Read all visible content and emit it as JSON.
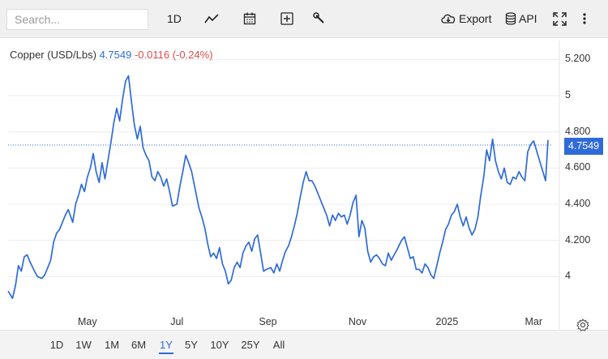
{
  "toolbar": {
    "search_placeholder": "Search...",
    "interval_label": "1D",
    "export_label": "Export",
    "api_label": "API",
    "icons": [
      "line-chart-icon",
      "calendar-icon",
      "plus-box-icon",
      "wrench-icon",
      "cloud-download-icon",
      "database-icon",
      "fullscreen-icon",
      "more-vertical-icon"
    ]
  },
  "quote": {
    "name": "Copper (USD/Lbs)",
    "price": "4.7549",
    "change": "-0.0116 (-0.24%)",
    "last_label": "4.7549"
  },
  "ranges": [
    "1D",
    "1W",
    "1M",
    "6M",
    "1Y",
    "5Y",
    "10Y",
    "25Y",
    "All"
  ],
  "active_range": "1Y",
  "colors": {
    "line": "#2f6bd8",
    "change_negative": "#e04b4b",
    "price": "#2e6fd6"
  },
  "chart_data": {
    "type": "line",
    "title": "Copper (USD/Lbs)",
    "xlabel": "",
    "ylabel": "",
    "y_ticks": [
      {
        "value": 5.2,
        "label": "5.200"
      },
      {
        "value": 5.0,
        "label": "5"
      },
      {
        "value": 4.8,
        "label": "4.800"
      },
      {
        "value": 4.6,
        "label": "4.600"
      },
      {
        "value": 4.4,
        "label": "4.400"
      },
      {
        "value": 4.2,
        "label": "4.200"
      },
      {
        "value": 4.0,
        "label": "4"
      }
    ],
    "x_ticks": [
      {
        "value": "2024-05-01",
        "label": "May"
      },
      {
        "value": "2024-07-01",
        "label": "Jul"
      },
      {
        "value": "2024-09-01",
        "label": "Sep"
      },
      {
        "value": "2024-11-01",
        "label": "Nov"
      },
      {
        "value": "2025-01-01",
        "label": "2025"
      },
      {
        "value": "2025-03-01",
        "label": "Mar"
      }
    ],
    "xlim": [
      "2024-03-08",
      "2025-03-13"
    ],
    "ylim": [
      3.8,
      5.26
    ],
    "last_value": 4.7549,
    "series": [
      {
        "values": [
          [
            "2024-03-08",
            3.92
          ],
          [
            "2024-03-11",
            3.88
          ],
          [
            "2024-03-13",
            3.95
          ],
          [
            "2024-03-15",
            4.06
          ],
          [
            "2024-03-17",
            4.03
          ],
          [
            "2024-03-19",
            4.11
          ],
          [
            "2024-03-21",
            4.12
          ],
          [
            "2024-03-23",
            4.08
          ],
          [
            "2024-03-26",
            4.03
          ],
          [
            "2024-03-28",
            4.0
          ],
          [
            "2024-03-31",
            3.99
          ],
          [
            "2024-04-02",
            4.01
          ],
          [
            "2024-04-04",
            4.05
          ],
          [
            "2024-04-06",
            4.09
          ],
          [
            "2024-04-08",
            4.19
          ],
          [
            "2024-04-10",
            4.24
          ],
          [
            "2024-04-12",
            4.26
          ],
          [
            "2024-04-14",
            4.3
          ],
          [
            "2024-04-16",
            4.34
          ],
          [
            "2024-04-18",
            4.37
          ],
          [
            "2024-04-21",
            4.3
          ],
          [
            "2024-04-23",
            4.4
          ],
          [
            "2024-04-25",
            4.45
          ],
          [
            "2024-04-27",
            4.51
          ],
          [
            "2024-04-29",
            4.47
          ],
          [
            "2024-05-01",
            4.55
          ],
          [
            "2024-05-03",
            4.6
          ],
          [
            "2024-05-05",
            4.68
          ],
          [
            "2024-05-07",
            4.58
          ],
          [
            "2024-05-09",
            4.52
          ],
          [
            "2024-05-11",
            4.63
          ],
          [
            "2024-05-13",
            4.54
          ],
          [
            "2024-05-15",
            4.64
          ],
          [
            "2024-05-17",
            4.74
          ],
          [
            "2024-05-19",
            4.85
          ],
          [
            "2024-05-21",
            4.93
          ],
          [
            "2024-05-23",
            4.86
          ],
          [
            "2024-05-25",
            4.98
          ],
          [
            "2024-05-27",
            5.08
          ],
          [
            "2024-05-29",
            5.11
          ],
          [
            "2024-05-31",
            4.97
          ],
          [
            "2024-06-02",
            4.84
          ],
          [
            "2024-06-04",
            4.76
          ],
          [
            "2024-06-06",
            4.83
          ],
          [
            "2024-06-08",
            4.71
          ],
          [
            "2024-06-10",
            4.67
          ],
          [
            "2024-06-12",
            4.64
          ],
          [
            "2024-06-14",
            4.55
          ],
          [
            "2024-06-16",
            4.53
          ],
          [
            "2024-06-18",
            4.58
          ],
          [
            "2024-06-20",
            4.55
          ],
          [
            "2024-06-22",
            4.5
          ],
          [
            "2024-06-24",
            4.54
          ],
          [
            "2024-06-26",
            4.47
          ],
          [
            "2024-06-28",
            4.39
          ],
          [
            "2024-07-01",
            4.4
          ],
          [
            "2024-07-03",
            4.5
          ],
          [
            "2024-07-05",
            4.58
          ],
          [
            "2024-07-07",
            4.67
          ],
          [
            "2024-07-09",
            4.63
          ],
          [
            "2024-07-11",
            4.58
          ],
          [
            "2024-07-13",
            4.5
          ],
          [
            "2024-07-16",
            4.38
          ],
          [
            "2024-07-18",
            4.33
          ],
          [
            "2024-07-20",
            4.27
          ],
          [
            "2024-07-22",
            4.18
          ],
          [
            "2024-07-24",
            4.11
          ],
          [
            "2024-07-26",
            4.13
          ],
          [
            "2024-07-28",
            4.1
          ],
          [
            "2024-07-30",
            4.16
          ],
          [
            "2024-08-01",
            4.07
          ],
          [
            "2024-08-03",
            4.03
          ],
          [
            "2024-08-05",
            3.96
          ],
          [
            "2024-08-07",
            3.98
          ],
          [
            "2024-08-09",
            4.05
          ],
          [
            "2024-08-11",
            4.08
          ],
          [
            "2024-08-13",
            4.05
          ],
          [
            "2024-08-15",
            4.13
          ],
          [
            "2024-08-17",
            4.17
          ],
          [
            "2024-08-19",
            4.19
          ],
          [
            "2024-08-21",
            4.14
          ],
          [
            "2024-08-23",
            4.21
          ],
          [
            "2024-08-25",
            4.23
          ],
          [
            "2024-08-27",
            4.13
          ],
          [
            "2024-08-29",
            4.03
          ],
          [
            "2024-08-31",
            4.04
          ],
          [
            "2024-09-03",
            4.05
          ],
          [
            "2024-09-05",
            4.02
          ],
          [
            "2024-09-07",
            4.07
          ],
          [
            "2024-09-09",
            4.03
          ],
          [
            "2024-09-11",
            4.09
          ],
          [
            "2024-09-13",
            4.14
          ],
          [
            "2024-09-15",
            4.17
          ],
          [
            "2024-09-17",
            4.22
          ],
          [
            "2024-09-19",
            4.28
          ],
          [
            "2024-09-21",
            4.35
          ],
          [
            "2024-09-23",
            4.44
          ],
          [
            "2024-09-25",
            4.52
          ],
          [
            "2024-09-27",
            4.58
          ],
          [
            "2024-09-29",
            4.53
          ],
          [
            "2024-10-01",
            4.53
          ],
          [
            "2024-10-03",
            4.5
          ],
          [
            "2024-10-05",
            4.46
          ],
          [
            "2024-10-07",
            4.42
          ],
          [
            "2024-10-09",
            4.38
          ],
          [
            "2024-10-11",
            4.34
          ],
          [
            "2024-10-13",
            4.28
          ],
          [
            "2024-10-15",
            4.34
          ],
          [
            "2024-10-17",
            4.31
          ],
          [
            "2024-10-19",
            4.35
          ],
          [
            "2024-10-21",
            4.33
          ],
          [
            "2024-10-23",
            4.34
          ],
          [
            "2024-10-25",
            4.29
          ],
          [
            "2024-10-27",
            4.34
          ],
          [
            "2024-10-29",
            4.41
          ],
          [
            "2024-10-31",
            4.45
          ],
          [
            "2024-11-02",
            4.22
          ],
          [
            "2024-11-04",
            4.31
          ],
          [
            "2024-11-06",
            4.27
          ],
          [
            "2024-11-08",
            4.14
          ],
          [
            "2024-11-10",
            4.08
          ],
          [
            "2024-11-12",
            4.11
          ],
          [
            "2024-11-14",
            4.12
          ],
          [
            "2024-11-16",
            4.1
          ],
          [
            "2024-11-18",
            4.07
          ],
          [
            "2024-11-20",
            4.06
          ],
          [
            "2024-11-22",
            4.13
          ],
          [
            "2024-11-24",
            4.09
          ],
          [
            "2024-11-26",
            4.12
          ],
          [
            "2024-11-28",
            4.15
          ],
          [
            "2024-12-01",
            4.2
          ],
          [
            "2024-12-03",
            4.22
          ],
          [
            "2024-12-05",
            4.16
          ],
          [
            "2024-12-07",
            4.1
          ],
          [
            "2024-12-09",
            4.11
          ],
          [
            "2024-12-11",
            4.04
          ],
          [
            "2024-12-13",
            4.04
          ],
          [
            "2024-12-15",
            4.02
          ],
          [
            "2024-12-17",
            4.07
          ],
          [
            "2024-12-19",
            4.05
          ],
          [
            "2024-12-21",
            4.01
          ],
          [
            "2024-12-23",
            3.99
          ],
          [
            "2024-12-25",
            4.06
          ],
          [
            "2024-12-27",
            4.13
          ],
          [
            "2024-12-29",
            4.19
          ],
          [
            "2024-12-31",
            4.26
          ],
          [
            "2025-01-02",
            4.29
          ],
          [
            "2025-01-04",
            4.34
          ],
          [
            "2025-01-06",
            4.36
          ],
          [
            "2025-01-08",
            4.4
          ],
          [
            "2025-01-10",
            4.33
          ],
          [
            "2025-01-12",
            4.28
          ],
          [
            "2025-01-14",
            4.33
          ],
          [
            "2025-01-16",
            4.27
          ],
          [
            "2025-01-18",
            4.23
          ],
          [
            "2025-01-20",
            4.26
          ],
          [
            "2025-01-22",
            4.33
          ],
          [
            "2025-01-24",
            4.45
          ],
          [
            "2025-01-26",
            4.55
          ],
          [
            "2025-01-28",
            4.7
          ],
          [
            "2025-01-30",
            4.64
          ],
          [
            "2025-02-01",
            4.76
          ],
          [
            "2025-02-03",
            4.64
          ],
          [
            "2025-02-05",
            4.58
          ],
          [
            "2025-02-07",
            4.54
          ],
          [
            "2025-02-09",
            4.6
          ],
          [
            "2025-02-11",
            4.52
          ],
          [
            "2025-02-13",
            4.51
          ],
          [
            "2025-02-15",
            4.55
          ],
          [
            "2025-02-17",
            4.54
          ],
          [
            "2025-02-19",
            4.58
          ],
          [
            "2025-02-21",
            4.55
          ],
          [
            "2025-02-23",
            4.53
          ],
          [
            "2025-02-25",
            4.69
          ],
          [
            "2025-02-27",
            4.73
          ],
          [
            "2025-03-01",
            4.75
          ]
        ]
      }
    ]
  }
}
